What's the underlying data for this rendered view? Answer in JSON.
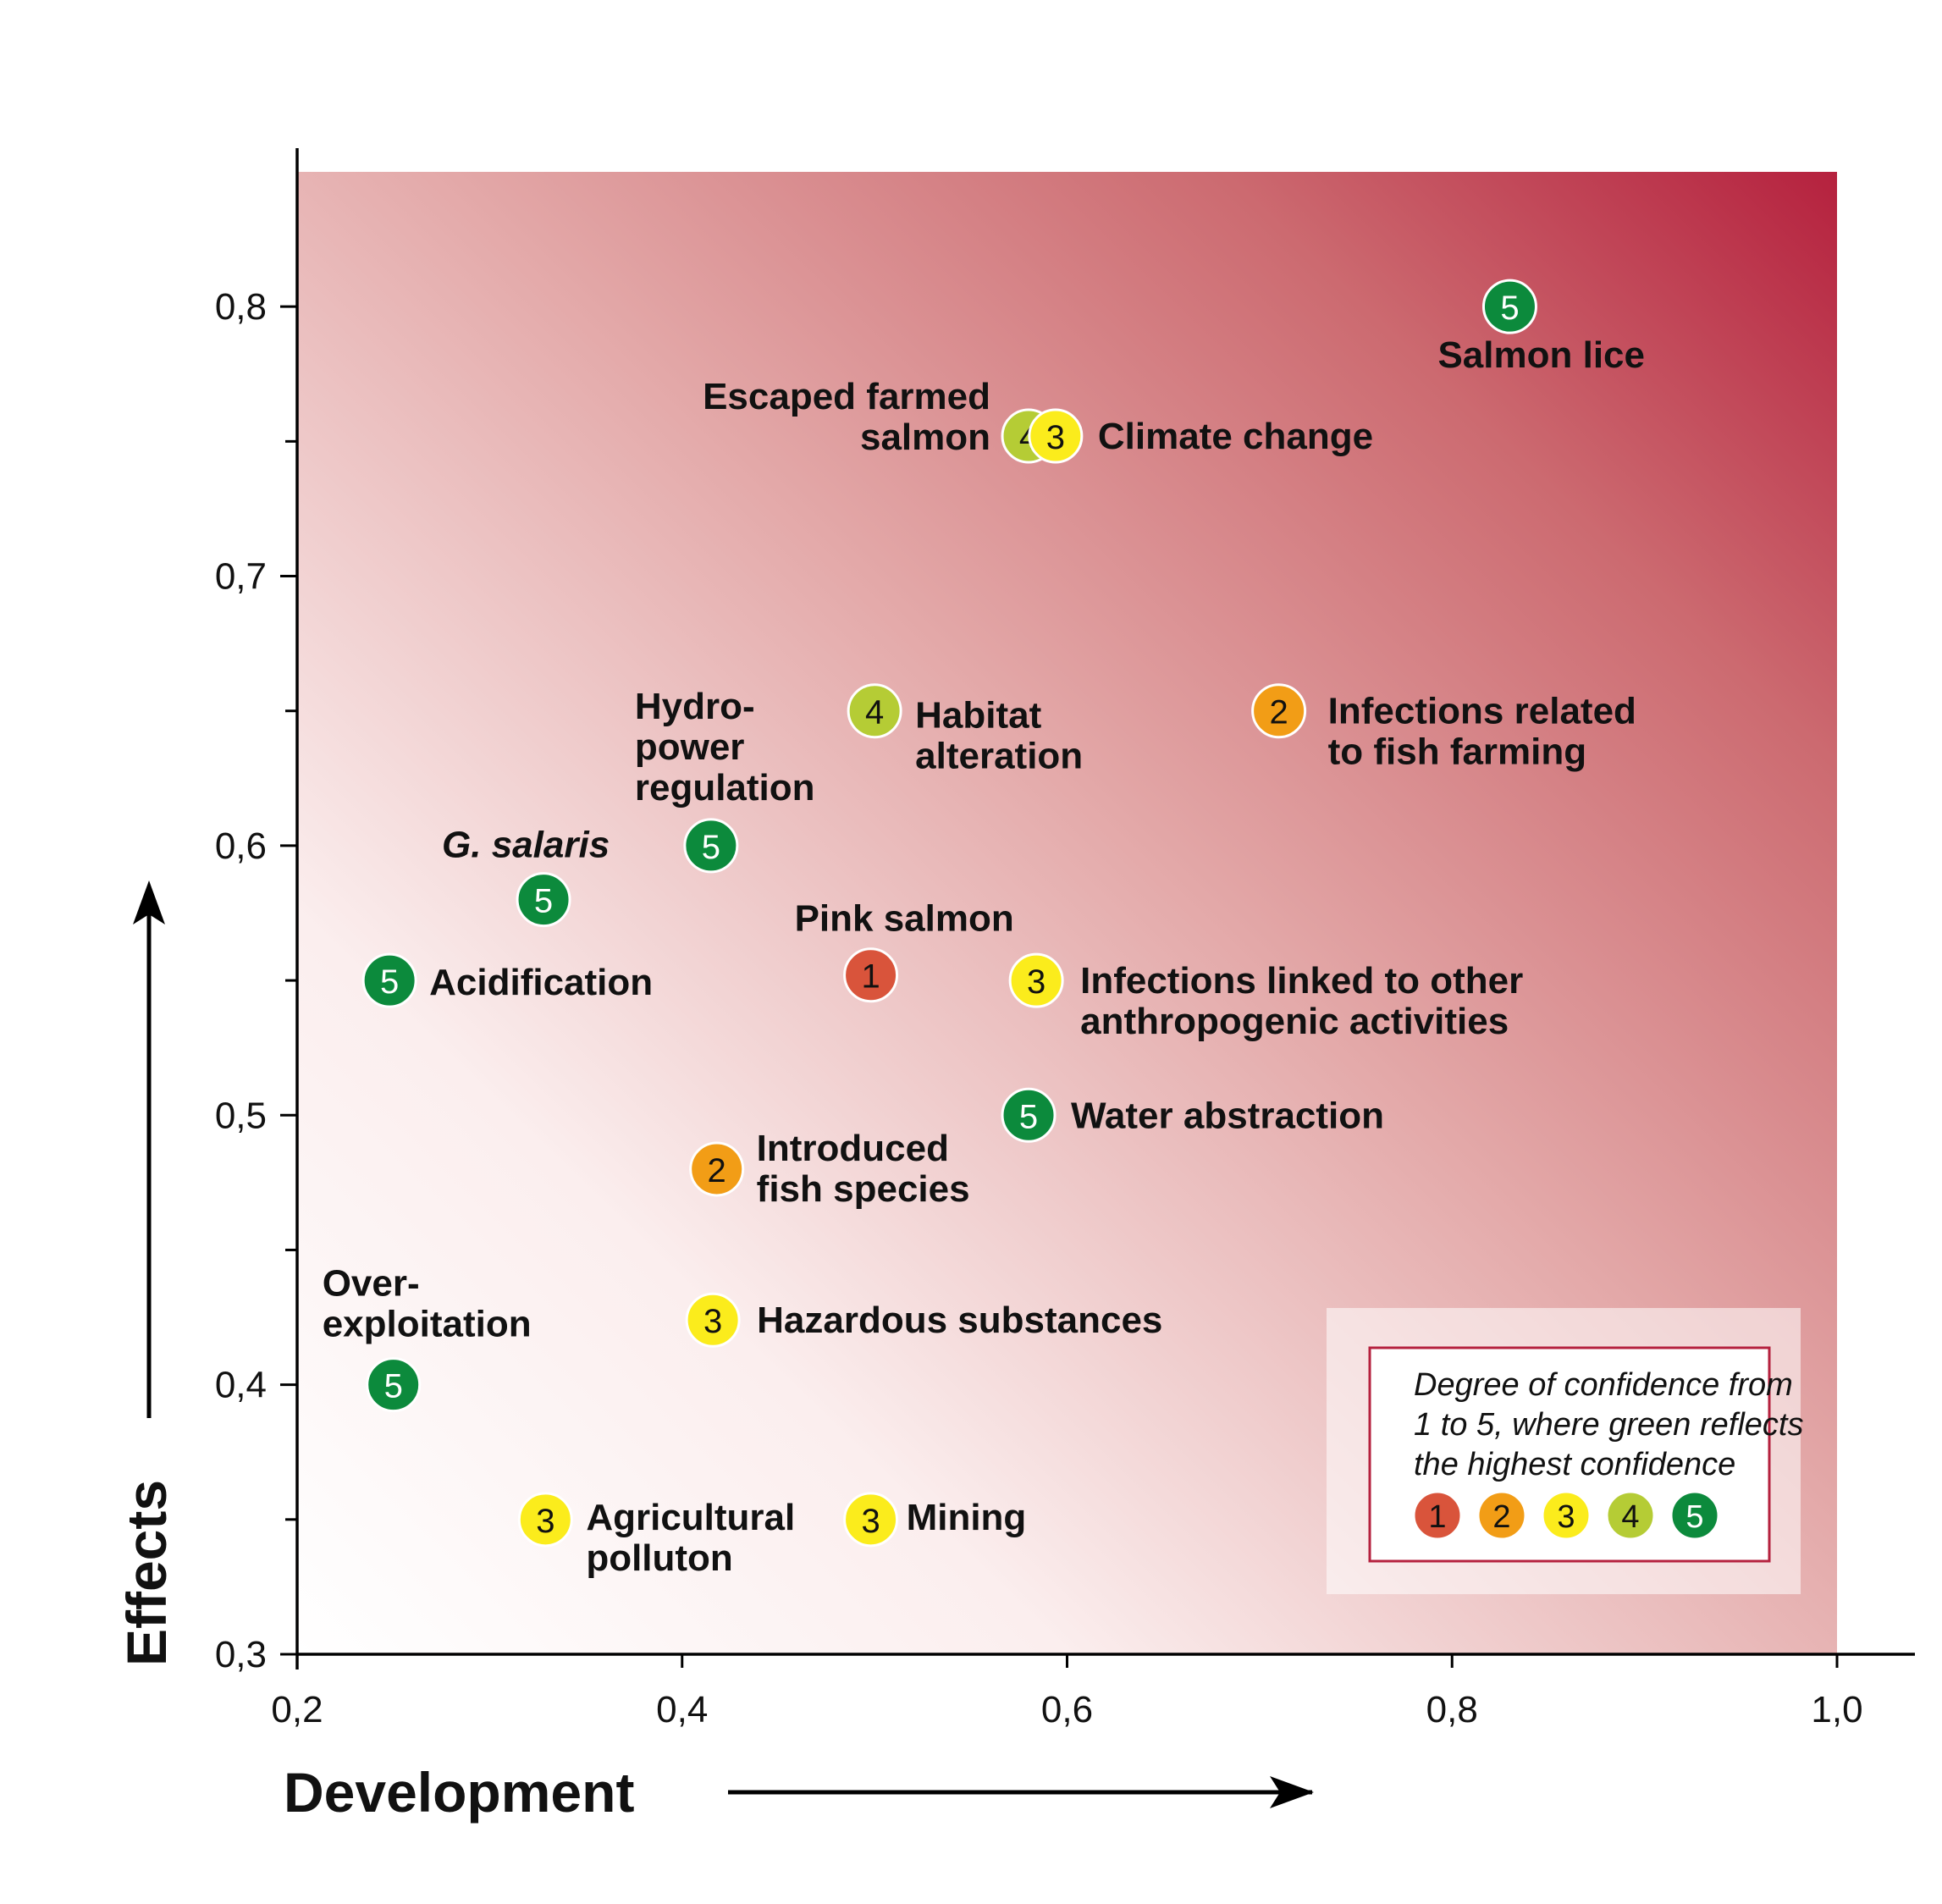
{
  "chart_data": {
    "type": "scatter",
    "xlabel": "Development",
    "ylabel": "Effects",
    "xlim": [
      0.2,
      1.0
    ],
    "ylim": [
      0.3,
      0.85
    ],
    "x_ticks": [
      "0,2",
      "0,4",
      "0,6",
      "0,8",
      "1,0"
    ],
    "y_ticks": [
      "0,3",
      "0,4",
      "0,5",
      "0,6",
      "0,7",
      "0,8"
    ],
    "background": "gradient white (lower-left) to dark red (upper-right)",
    "points": [
      {
        "label": [
          "Salmon lice"
        ],
        "x": 0.83,
        "y": 0.8,
        "confidence": 5
      },
      {
        "label": [
          "Escaped farmed",
          "salmon"
        ],
        "x": 0.58,
        "y": 0.752,
        "confidence": 4
      },
      {
        "label": [
          "Climate change"
        ],
        "x": 0.594,
        "y": 0.752,
        "confidence": 3
      },
      {
        "label": [
          "Habitat",
          "alteration"
        ],
        "x": 0.5,
        "y": 0.65,
        "confidence": 4
      },
      {
        "label": [
          "Infections related",
          "to fish farming"
        ],
        "x": 0.71,
        "y": 0.65,
        "confidence": 2
      },
      {
        "label": [
          "Hydro-",
          "power",
          "regulation"
        ],
        "x": 0.415,
        "y": 0.6,
        "confidence": 5
      },
      {
        "label": [
          "G. salaris"
        ],
        "x": 0.328,
        "y": 0.58,
        "confidence": 5,
        "italic": true
      },
      {
        "label": [
          "Acidification"
        ],
        "x": 0.248,
        "y": 0.55,
        "confidence": 5
      },
      {
        "label": [
          "Pink salmon"
        ],
        "x": 0.498,
        "y": 0.552,
        "confidence": 1
      },
      {
        "label": [
          "Infections linked to other",
          "anthropogenic activities"
        ],
        "x": 0.584,
        "y": 0.55,
        "confidence": 3
      },
      {
        "label": [
          "Water abstraction"
        ],
        "x": 0.58,
        "y": 0.5,
        "confidence": 5
      },
      {
        "label": [
          "Introduced",
          "fish species"
        ],
        "x": 0.418,
        "y": 0.48,
        "confidence": 2
      },
      {
        "label": [
          "Hazardous substances"
        ],
        "x": 0.416,
        "y": 0.424,
        "confidence": 3
      },
      {
        "label": [
          "Over-",
          "exploitation"
        ],
        "x": 0.25,
        "y": 0.4,
        "confidence": 5
      },
      {
        "label": [
          "Agricultural",
          "polluton"
        ],
        "x": 0.329,
        "y": 0.35,
        "confidence": 3
      },
      {
        "label": [
          "Mining"
        ],
        "x": 0.498,
        "y": 0.35,
        "confidence": 3
      }
    ],
    "legend": {
      "title_lines": [
        "Degree of confidence from",
        "1 to 5, where green reflects",
        "the highest confidence"
      ],
      "levels": [
        1,
        2,
        3,
        4,
        5
      ],
      "placement": "bottom-right"
    },
    "confidence_colors": {
      "1": "#d9543b",
      "2": "#f29d16",
      "3": "#fbec1c",
      "4": "#b5cc35",
      "5": "#0c8a3c"
    }
  }
}
